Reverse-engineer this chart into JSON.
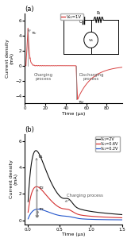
{
  "panel_a": {
    "title": "(a)",
    "xlabel": "Time (μs)",
    "ylabel": "Current density\n(mA)",
    "xlim": [
      0,
      95
    ],
    "ylim": [
      -5,
      7
    ],
    "yticks": [
      -4,
      -2,
      0,
      2,
      4,
      6
    ],
    "xticks": [
      0,
      20,
      40,
      60,
      80
    ],
    "legend_label": "Vₛ₁=1V",
    "line_color": "#d43030"
  },
  "panel_b": {
    "title": "(b)",
    "xlabel": "Time (μs)",
    "ylabel": "Current density\n(mA)",
    "xlim": [
      -0.05,
      1.5
    ],
    "ylim": [
      -0.3,
      6.5
    ],
    "yticks": [
      0,
      2,
      4,
      6
    ],
    "xticks": [
      0.0,
      0.5,
      1.0,
      1.5
    ],
    "legend": [
      {
        "label": "Vₛ₁=2V",
        "color": "#111111"
      },
      {
        "label": "Vₛ₁=0.6V",
        "color": "#d43030"
      },
      {
        "label": "Vₛ₁=0.2V",
        "color": "#2255cc"
      }
    ]
  }
}
